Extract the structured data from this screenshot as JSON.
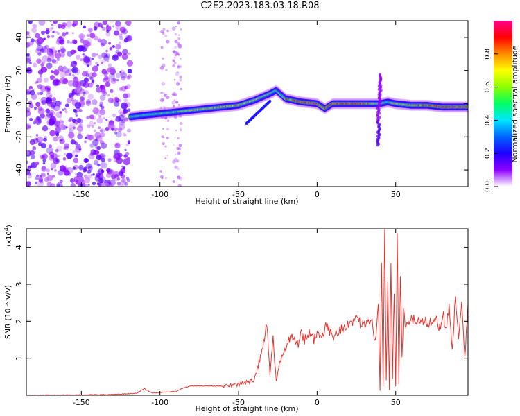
{
  "page": {
    "title": "C2E2.2023.183.03.18.R08"
  },
  "colors": {
    "snr_line": "#e8322c",
    "colormap": [
      "#ffffff",
      "#8e00ff",
      "#1e00ff",
      "#0064ff",
      "#00e6ff",
      "#00ff64",
      "#8cff00",
      "#ffff00",
      "#ff8c00",
      "#ff0000",
      "#ff008c"
    ]
  },
  "chart_data": [
    {
      "type": "heatmap",
      "xlabel": "Height of straight line (km)",
      "ylabel": "Frequency (Hz)",
      "xlim": [
        -185,
        96
      ],
      "ylim": [
        -50,
        50
      ],
      "xticks": [
        -150,
        -100,
        -50,
        0,
        50
      ],
      "yticks": [
        -40,
        -20,
        0,
        20,
        40
      ],
      "colorbar": {
        "label": "Normalized spectral amplitude",
        "range": [
          0,
          1
        ],
        "ticks": [
          "0.0",
          "0.2",
          "0.4",
          "0.6",
          "0.8"
        ]
      },
      "noise_region_x": [
        -185,
        -119
      ],
      "signal_ridge": {
        "x": [
          -119,
          -110,
          -100,
          -90,
          -80,
          -70,
          -60,
          -50,
          -40,
          -35,
          -30,
          -26,
          -20,
          -10,
          0,
          5,
          10,
          20,
          30,
          40,
          45,
          50,
          60,
          70,
          80,
          96
        ],
        "freq": [
          -8,
          -7,
          -6,
          -5,
          -4,
          -3,
          -2,
          -1,
          2,
          4,
          6,
          8,
          3,
          1,
          0,
          -3,
          0,
          0,
          0,
          0,
          1,
          0,
          -1,
          -1,
          -2,
          -2
        ],
        "amplitude": [
          0.55,
          0.5,
          0.5,
          0.55,
          0.7,
          0.7,
          0.75,
          0.75,
          0.7,
          0.6,
          0.6,
          0.5,
          0.75,
          0.9,
          0.9,
          0.85,
          0.9,
          0.9,
          0.9,
          0.6,
          0.5,
          0.7,
          0.75,
          0.85,
          0.9,
          0.9
        ]
      }
    },
    {
      "type": "line",
      "xlabel": "Height of straight line (km)",
      "ylabel": "SNR (10 * v/v)",
      "scale_label_base": "(x10",
      "scale_label_exp": "4",
      "scale_label_end": ")",
      "xlim": [
        -185,
        96
      ],
      "ylim": [
        0,
        4.5
      ],
      "xticks": [
        -150,
        -100,
        -50,
        0,
        50
      ],
      "yticks": [
        1,
        2,
        3,
        4
      ],
      "series": [
        {
          "x": [
            -185,
            -130,
            -115,
            -110,
            -105,
            -90,
            -85,
            -80,
            -70,
            -60,
            -50,
            -40,
            -35,
            -32,
            -30,
            -28,
            -26,
            -24,
            -22,
            -20,
            -18,
            -15,
            -12,
            -10,
            -8,
            -5,
            -2,
            0,
            3,
            6,
            10,
            15,
            20,
            25,
            30,
            35,
            37,
            39,
            40,
            41,
            42,
            43,
            44,
            45,
            46,
            47,
            48,
            49,
            50,
            51,
            52,
            53,
            54,
            55,
            56,
            58,
            60,
            65,
            70,
            75,
            78,
            80,
            82,
            84,
            86,
            88,
            90,
            92,
            94,
            96
          ],
          "values": [
            0.0,
            0.02,
            0.05,
            0.18,
            0.06,
            0.1,
            0.2,
            0.25,
            0.25,
            0.25,
            0.3,
            0.4,
            1.2,
            1.9,
            0.6,
            1.5,
            0.4,
            0.8,
            1.1,
            1.3,
            1.5,
            1.6,
            1.4,
            1.7,
            1.5,
            1.7,
            1.5,
            1.7,
            1.5,
            1.9,
            1.6,
            1.8,
            1.9,
            2.0,
            1.95,
            2.1,
            1.4,
            2.6,
            0.1,
            3.5,
            0.2,
            4.5,
            0.4,
            3.0,
            0.1,
            3.7,
            0.5,
            2.8,
            0.2,
            4.5,
            0.3,
            3.2,
            1.0,
            2.2,
            1.9,
            2.05,
            2.0,
            2.05,
            1.95,
            2.1,
            1.8,
            2.3,
            1.7,
            2.5,
            1.2,
            2.6,
            1.5,
            2.4,
            1.0,
            2.5
          ]
        }
      ]
    }
  ]
}
